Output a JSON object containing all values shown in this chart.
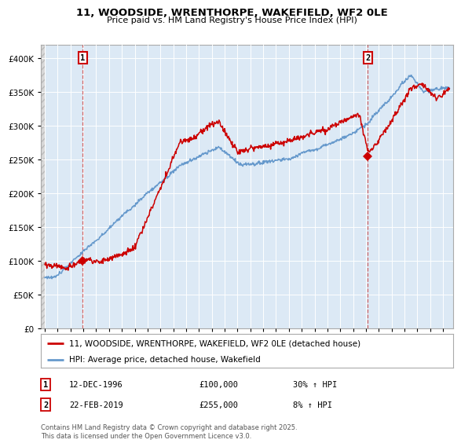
{
  "title_line1": "11, WOODSIDE, WRENTHORPE, WAKEFIELD, WF2 0LE",
  "title_line2": "Price paid vs. HM Land Registry's House Price Index (HPI)",
  "background_color": "#ffffff",
  "plot_bg_color": "#dce9f5",
  "hatch_bg_color": "#d8d8d8",
  "hatch_edge_color": "#bbbbbb",
  "grid_color": "#ffffff",
  "red_color": "#cc0000",
  "blue_color": "#6699cc",
  "marker1_x": 1996.95,
  "marker1_y": 100000,
  "marker2_x": 2019.15,
  "marker2_y": 255000,
  "legend_label1": "11, WOODSIDE, WRENTHORPE, WAKEFIELD, WF2 0LE (detached house)",
  "legend_label2": "HPI: Average price, detached house, Wakefield",
  "note1_date": "12-DEC-1996",
  "note1_price": "£100,000",
  "note1_hpi": "30% ↑ HPI",
  "note2_date": "22-FEB-2019",
  "note2_price": "£255,000",
  "note2_hpi": "8% ↑ HPI",
  "footer": "Contains HM Land Registry data © Crown copyright and database right 2025.\nThis data is licensed under the Open Government Licence v3.0.",
  "ylim": [
    0,
    420000
  ],
  "xmin": 1993.7,
  "xmax": 2025.8,
  "hatch_xmax": 1994.0
}
